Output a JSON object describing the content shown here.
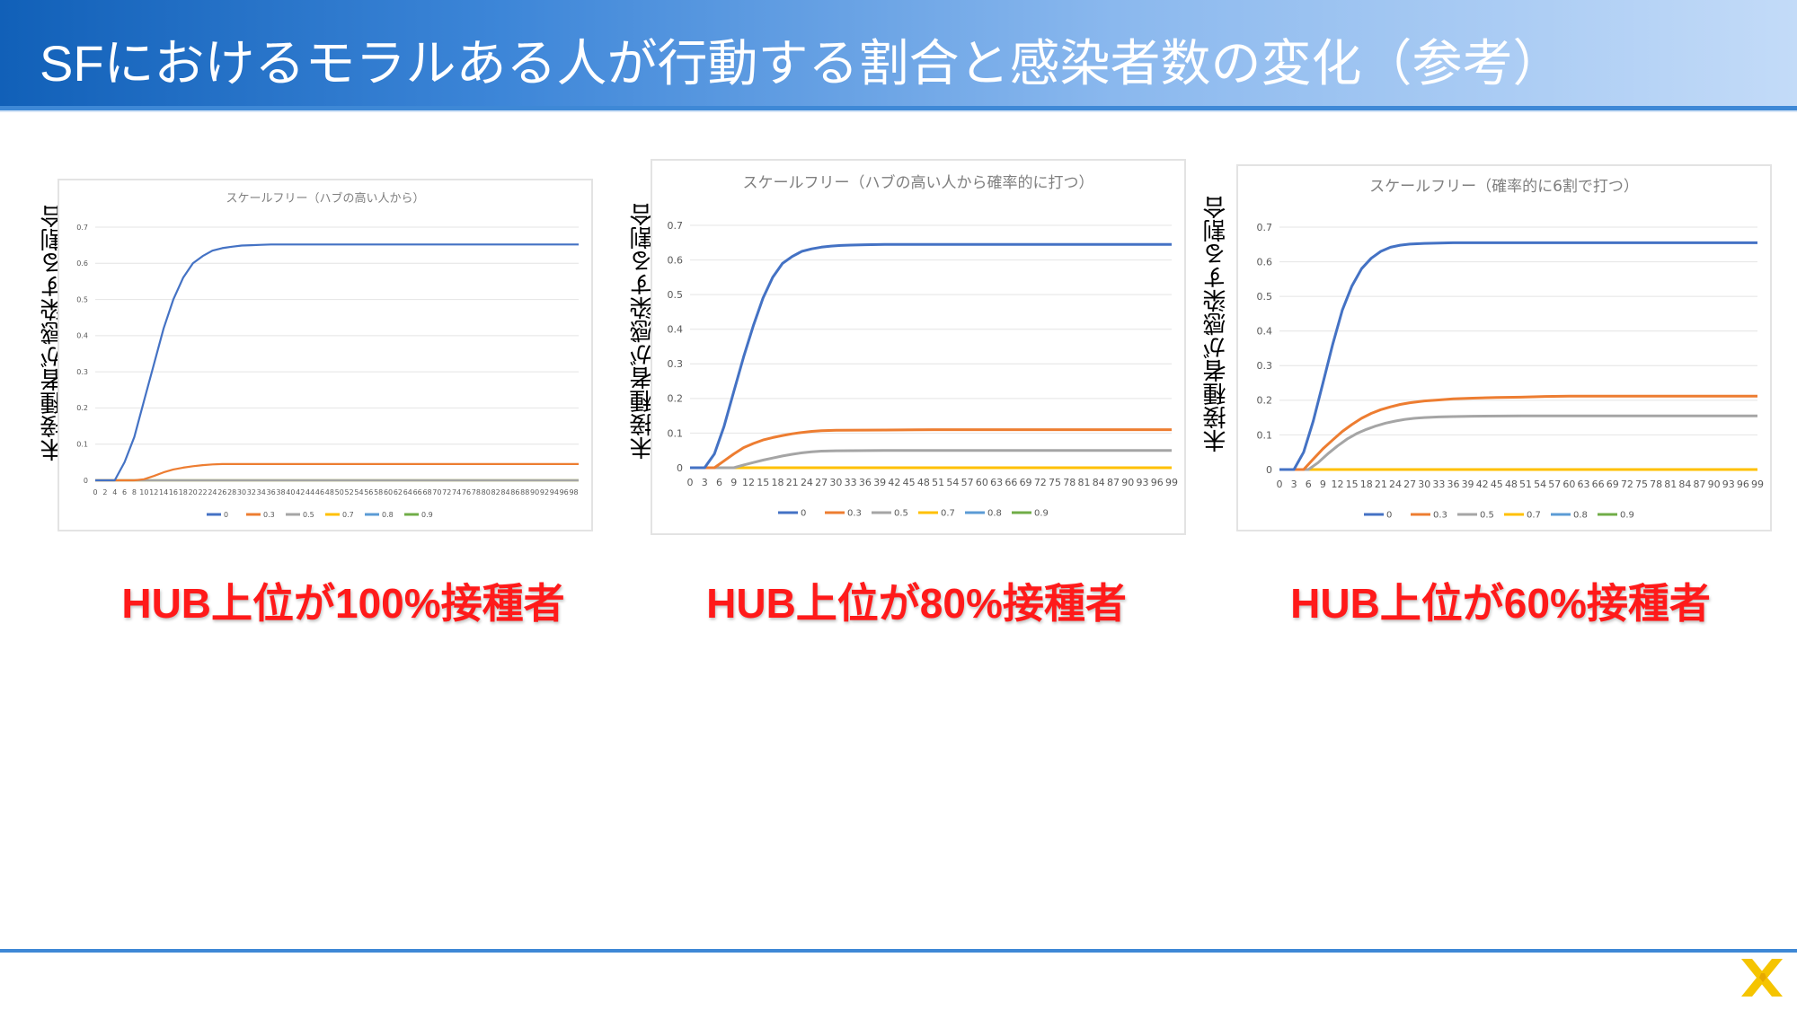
{
  "header": {
    "title": "SFにおけるモラルある人が行動する割合と感染者数の変化（参考）"
  },
  "ylabel": "未接種者が感染する割合",
  "colors": {
    "0": "#4472c4",
    "0.3": "#ed7d31",
    "0.5": "#a5a5a5",
    "0.7": "#ffc000",
    "0.8": "#5b9bd5",
    "0.9": "#70ad47"
  },
  "chart_data": [
    {
      "type": "line",
      "title": "スケールフリー（ハブの高い人から）",
      "ylim": [
        0,
        0.7
      ],
      "yticks": [
        0,
        0.1,
        0.2,
        0.3,
        0.4,
        0.5,
        0.6,
        0.7
      ],
      "xlim": [
        0,
        99
      ],
      "xticks_step": 2,
      "xticks_max": 98,
      "legend": "bottom",
      "grid": true,
      "caption": "HUB上位が100%接種者",
      "series": [
        {
          "name": "0",
          "x": [
            0,
            4,
            6,
            8,
            10,
            12,
            14,
            16,
            18,
            20,
            22,
            24,
            26,
            28,
            30,
            32,
            34,
            36,
            40,
            50,
            60,
            70,
            80,
            90,
            99
          ],
          "y": [
            0,
            0,
            0.05,
            0.12,
            0.22,
            0.32,
            0.42,
            0.5,
            0.56,
            0.6,
            0.62,
            0.635,
            0.642,
            0.646,
            0.649,
            0.65,
            0.651,
            0.652,
            0.652,
            0.652,
            0.652,
            0.652,
            0.652,
            0.652,
            0.652
          ]
        },
        {
          "name": "0.3",
          "x": [
            0,
            8,
            10,
            12,
            14,
            16,
            18,
            20,
            22,
            24,
            26,
            30,
            40,
            50,
            60,
            70,
            80,
            90,
            99
          ],
          "y": [
            0,
            0,
            0.003,
            0.012,
            0.022,
            0.03,
            0.035,
            0.039,
            0.042,
            0.044,
            0.045,
            0.045,
            0.045,
            0.045,
            0.045,
            0.045,
            0.045,
            0.045,
            0.045
          ]
        },
        {
          "name": "0.5",
          "x": [
            0,
            99
          ],
          "y": [
            0,
            0
          ]
        },
        {
          "name": "0.7",
          "x": [
            0,
            99
          ],
          "y": [
            0,
            0
          ]
        },
        {
          "name": "0.8",
          "x": [
            0,
            99
          ],
          "y": [
            0,
            0
          ]
        },
        {
          "name": "0.9",
          "x": [
            0,
            99
          ],
          "y": [
            0,
            0
          ]
        }
      ]
    },
    {
      "type": "line",
      "title": "スケールフリー（ハブの高い人から確率的に打つ）",
      "ylim": [
        0,
        0.7
      ],
      "yticks": [
        0,
        0.1,
        0.2,
        0.3,
        0.4,
        0.5,
        0.6,
        0.7
      ],
      "xlim": [
        0,
        99
      ],
      "xticks_step": 3,
      "xticks_max": 99,
      "legend": "bottom",
      "grid": true,
      "caption": "HUB上位が80%接種者",
      "series": [
        {
          "name": "0",
          "x": [
            0,
            3,
            5,
            7,
            9,
            11,
            13,
            15,
            17,
            19,
            21,
            23,
            25,
            27,
            29,
            31,
            33,
            36,
            40,
            50,
            60,
            70,
            80,
            90,
            99
          ],
          "y": [
            0,
            0,
            0.04,
            0.12,
            0.22,
            0.32,
            0.41,
            0.49,
            0.55,
            0.59,
            0.61,
            0.625,
            0.632,
            0.637,
            0.64,
            0.642,
            0.643,
            0.644,
            0.645,
            0.645,
            0.645,
            0.645,
            0.645,
            0.645,
            0.645
          ]
        },
        {
          "name": "0.3",
          "x": [
            0,
            5,
            7,
            9,
            11,
            13,
            15,
            17,
            19,
            21,
            23,
            25,
            27,
            30,
            40,
            50,
            60,
            70,
            80,
            90,
            99
          ],
          "y": [
            0,
            0,
            0.02,
            0.04,
            0.058,
            0.07,
            0.08,
            0.087,
            0.093,
            0.098,
            0.102,
            0.105,
            0.107,
            0.108,
            0.109,
            0.11,
            0.11,
            0.11,
            0.11,
            0.11,
            0.11
          ]
        },
        {
          "name": "0.5",
          "x": [
            0,
            9,
            11,
            13,
            15,
            17,
            19,
            21,
            23,
            25,
            27,
            30,
            40,
            50,
            60,
            70,
            80,
            90,
            99
          ],
          "y": [
            0,
            0,
            0.008,
            0.015,
            0.022,
            0.028,
            0.034,
            0.039,
            0.043,
            0.046,
            0.048,
            0.049,
            0.05,
            0.05,
            0.05,
            0.05,
            0.05,
            0.05,
            0.05
          ]
        },
        {
          "name": "0.7",
          "x": [
            0,
            99
          ],
          "y": [
            0,
            0
          ]
        },
        {
          "name": "0.8",
          "x": [
            0,
            99
          ],
          "y": [
            0,
            0
          ]
        },
        {
          "name": "0.9",
          "x": [
            0,
            99
          ],
          "y": [
            0,
            0
          ]
        }
      ]
    },
    {
      "type": "line",
      "title": "スケールフリー（確率的に6割で打つ）",
      "ylim": [
        0,
        0.7
      ],
      "yticks": [
        0,
        0.1,
        0.2,
        0.3,
        0.4,
        0.5,
        0.6,
        0.7
      ],
      "xlim": [
        0,
        99
      ],
      "xticks_step": 3,
      "xticks_max": 99,
      "legend": "bottom",
      "grid": true,
      "caption": "HUB上位が60%接種者",
      "series": [
        {
          "name": "0",
          "x": [
            0,
            3,
            5,
            7,
            9,
            11,
            13,
            15,
            17,
            19,
            21,
            23,
            25,
            27,
            30,
            33,
            36,
            40,
            50,
            60,
            70,
            80,
            90,
            99
          ],
          "y": [
            0,
            0,
            0.05,
            0.14,
            0.25,
            0.36,
            0.46,
            0.53,
            0.58,
            0.61,
            0.63,
            0.642,
            0.648,
            0.651,
            0.653,
            0.654,
            0.655,
            0.655,
            0.655,
            0.655,
            0.655,
            0.655,
            0.655,
            0.655
          ]
        },
        {
          "name": "0.3",
          "x": [
            0,
            5,
            7,
            9,
            11,
            13,
            15,
            17,
            19,
            21,
            23,
            25,
            27,
            30,
            33,
            36,
            40,
            45,
            50,
            55,
            60,
            70,
            80,
            90,
            99
          ],
          "y": [
            0,
            0,
            0.03,
            0.06,
            0.085,
            0.11,
            0.13,
            0.148,
            0.162,
            0.173,
            0.181,
            0.188,
            0.193,
            0.198,
            0.201,
            0.204,
            0.206,
            0.208,
            0.209,
            0.211,
            0.212,
            0.212,
            0.212,
            0.212,
            0.212
          ]
        },
        {
          "name": "0.5",
          "x": [
            0,
            6,
            8,
            10,
            12,
            14,
            16,
            18,
            20,
            22,
            24,
            26,
            28,
            30,
            33,
            36,
            40,
            50,
            60,
            70,
            80,
            90,
            99
          ],
          "y": [
            0,
            0,
            0.02,
            0.045,
            0.068,
            0.088,
            0.104,
            0.116,
            0.126,
            0.134,
            0.14,
            0.145,
            0.148,
            0.15,
            0.152,
            0.153,
            0.154,
            0.155,
            0.155,
            0.155,
            0.155,
            0.155,
            0.155
          ]
        },
        {
          "name": "0.7",
          "x": [
            0,
            99
          ],
          "y": [
            0,
            0
          ]
        },
        {
          "name": "0.8",
          "x": [
            0,
            99
          ],
          "y": [
            0,
            0
          ]
        },
        {
          "name": "0.9",
          "x": [
            0,
            99
          ],
          "y": [
            0,
            0
          ]
        }
      ]
    }
  ]
}
